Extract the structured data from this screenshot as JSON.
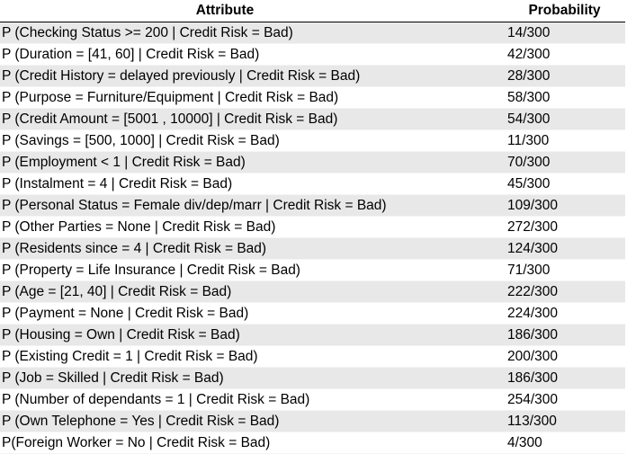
{
  "header": {
    "attribute": "Attribute",
    "probability": "Probability"
  },
  "rows": [
    {
      "attribute": "P (Checking Status >= 200 | Credit Risk = Bad)",
      "probability": "14/300"
    },
    {
      "attribute": "P (Duration = [41, 60] | Credit Risk = Bad)",
      "probability": "42/300"
    },
    {
      "attribute": "P (Credit History = delayed previously | Credit Risk = Bad)",
      "probability": "28/300"
    },
    {
      "attribute": "P (Purpose = Furniture/Equipment | Credit Risk = Bad)",
      "probability": "58/300"
    },
    {
      "attribute": "P (Credit Amount =  [5001 , 10000] | Credit Risk = Bad)",
      "probability": "54/300"
    },
    {
      "attribute": "P (Savings = [500, 1000] | Credit Risk = Bad)",
      "probability": "11/300"
    },
    {
      "attribute": "P (Employment  < 1 | Credit Risk = Bad)",
      "probability": "70/300"
    },
    {
      "attribute": "P (Instalment = 4 | Credit Risk = Bad)",
      "probability": "45/300"
    },
    {
      "attribute": "P (Personal Status = Female div/dep/marr | Credit Risk = Bad)",
      "probability": "109/300"
    },
    {
      "attribute": "P (Other Parties = None | Credit Risk = Bad)",
      "probability": "272/300"
    },
    {
      "attribute": "P (Residents since = 4 | Credit Risk = Bad)",
      "probability": "124/300"
    },
    {
      "attribute": "P (Property = Life Insurance | Credit Risk = Bad)",
      "probability": "71/300"
    },
    {
      "attribute": "P (Age = [21, 40] | Credit Risk = Bad)",
      "probability": "222/300"
    },
    {
      "attribute": "P (Payment = None | Credit Risk = Bad)",
      "probability": "224/300"
    },
    {
      "attribute": "P (Housing = Own | Credit Risk = Bad)",
      "probability": "186/300"
    },
    {
      "attribute": "P (Existing Credit = 1 | Credit Risk = Bad)",
      "probability": "200/300"
    },
    {
      "attribute": "P (Job = Skilled | Credit Risk = Bad)",
      "probability": "186/300"
    },
    {
      "attribute": "P (Number of dependants = 1 | Credit Risk = Bad)",
      "probability": "254/300"
    },
    {
      "attribute": "P (Own Telephone = Yes | Credit Risk = Bad)",
      "probability": "113/300"
    },
    {
      "attribute": "P(Foreign Worker = No | Credit Risk = Bad)",
      "probability": "4/300"
    }
  ]
}
